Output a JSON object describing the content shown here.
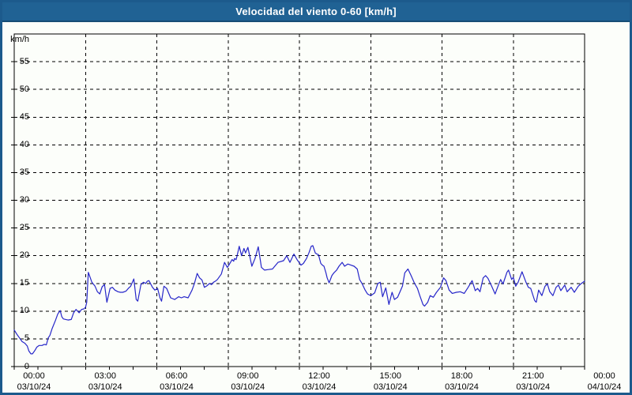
{
  "window": {
    "title": "Velocidad del viento 0-60 [km/h]"
  },
  "colors": {
    "titlebar_bg": "#206294",
    "titlebar_edge": "#174d75",
    "frame_border": "#1c5a8c",
    "plot_bg": "#fcfefa",
    "grid": "#000000",
    "line": "#2626c9",
    "title_text": "#ffffff"
  },
  "chart_data": {
    "type": "line",
    "title": "Velocidad del viento 0-60 [km/h]",
    "xlabel": "",
    "ylabel": "km/h",
    "ylim": [
      0,
      60
    ],
    "xlim": [
      0,
      1440
    ],
    "grid": "dashed",
    "legend": "none",
    "yticks": [
      0,
      5,
      10,
      15,
      20,
      25,
      30,
      35,
      40,
      45,
      50,
      55
    ],
    "x_minor_tick_minutes": 60,
    "x_major_tick_minutes": 180,
    "xticks": [
      {
        "m": 0,
        "time": "00:00",
        "date": "03/10/24"
      },
      {
        "m": 180,
        "time": "03:00",
        "date": "03/10/24"
      },
      {
        "m": 360,
        "time": "06:00",
        "date": "03/10/24"
      },
      {
        "m": 540,
        "time": "09:00",
        "date": "03/10/24"
      },
      {
        "m": 720,
        "time": "12:00",
        "date": "03/10/24"
      },
      {
        "m": 900,
        "time": "15:00",
        "date": "03/10/24"
      },
      {
        "m": 1080,
        "time": "18:00",
        "date": "03/10/24"
      },
      {
        "m": 1260,
        "time": "21:00",
        "date": "03/10/24"
      },
      {
        "m": 1440,
        "time": "00:00",
        "date": "04/10/24"
      }
    ],
    "series": [
      {
        "name": "Velocidad del viento [km/h]",
        "points": [
          [
            0,
            6.6
          ],
          [
            6,
            5.9
          ],
          [
            14,
            5.1
          ],
          [
            20,
            4.5
          ],
          [
            27,
            4.2
          ],
          [
            33,
            3.7
          ],
          [
            37,
            2.8
          ],
          [
            42,
            2.3
          ],
          [
            46,
            2.3
          ],
          [
            52,
            2.9
          ],
          [
            57,
            3.5
          ],
          [
            63,
            3.8
          ],
          [
            70,
            3.8
          ],
          [
            76,
            4.0
          ],
          [
            81,
            3.9
          ],
          [
            86,
            5.2
          ],
          [
            90,
            5.6
          ],
          [
            96,
            6.9
          ],
          [
            104,
            8.3
          ],
          [
            110,
            9.5
          ],
          [
            116,
            10.1
          ],
          [
            120,
            9.0
          ],
          [
            124,
            8.6
          ],
          [
            130,
            8.5
          ],
          [
            136,
            8.4
          ],
          [
            144,
            8.5
          ],
          [
            150,
            9.7
          ],
          [
            156,
            10.3
          ],
          [
            160,
            10.0
          ],
          [
            164,
            9.7
          ],
          [
            170,
            10.3
          ],
          [
            176,
            10.4
          ],
          [
            180,
            10.7
          ],
          [
            183,
            11.6
          ],
          [
            187,
            17.0
          ],
          [
            192,
            16.0
          ],
          [
            196,
            15.2
          ],
          [
            204,
            14.5
          ],
          [
            210,
            13.5
          ],
          [
            216,
            13.1
          ],
          [
            222,
            14.4
          ],
          [
            228,
            14.8
          ],
          [
            234,
            11.6
          ],
          [
            242,
            14.1
          ],
          [
            248,
            14.3
          ],
          [
            254,
            13.8
          ],
          [
            262,
            13.5
          ],
          [
            268,
            13.4
          ],
          [
            274,
            13.4
          ],
          [
            282,
            13.6
          ],
          [
            288,
            14.1
          ],
          [
            294,
            14.5
          ],
          [
            302,
            15.8
          ],
          [
            308,
            12.1
          ],
          [
            312,
            11.8
          ],
          [
            320,
            14.8
          ],
          [
            326,
            15.2
          ],
          [
            332,
            15.0
          ],
          [
            336,
            15.4
          ],
          [
            340,
            15.5
          ],
          [
            349,
            14.3
          ],
          [
            355,
            13.8
          ],
          [
            362,
            14.1
          ],
          [
            368,
            12.4
          ],
          [
            372,
            11.8
          ],
          [
            378,
            14.5
          ],
          [
            385,
            14.1
          ],
          [
            395,
            12.4
          ],
          [
            405,
            12.1
          ],
          [
            415,
            12.6
          ],
          [
            422,
            12.4
          ],
          [
            429,
            12.6
          ],
          [
            439,
            12.4
          ],
          [
            449,
            13.8
          ],
          [
            455,
            15.0
          ],
          [
            462,
            16.8
          ],
          [
            468,
            16.0
          ],
          [
            474,
            15.6
          ],
          [
            480,
            14.3
          ],
          [
            487,
            14.6
          ],
          [
            493,
            15.0
          ],
          [
            498,
            14.8
          ],
          [
            503,
            15.2
          ],
          [
            508,
            15.4
          ],
          [
            513,
            15.7
          ],
          [
            523,
            16.7
          ],
          [
            531,
            18.8
          ],
          [
            538,
            17.9
          ],
          [
            540,
            18.1
          ],
          [
            546,
            18.8
          ],
          [
            550,
            19.3
          ],
          [
            554,
            19.0
          ],
          [
            556,
            19.5
          ],
          [
            560,
            19.3
          ],
          [
            562,
            19.8
          ],
          [
            568,
            21.7
          ],
          [
            574,
            20.0
          ],
          [
            580,
            21.3
          ],
          [
            584,
            20.5
          ],
          [
            590,
            21.5
          ],
          [
            600,
            18.1
          ],
          [
            608,
            19.5
          ],
          [
            616,
            21.6
          ],
          [
            624,
            17.9
          ],
          [
            632,
            17.4
          ],
          [
            642,
            17.5
          ],
          [
            652,
            17.6
          ],
          [
            666,
            18.8
          ],
          [
            680,
            19.1
          ],
          [
            688,
            20.0
          ],
          [
            696,
            18.8
          ],
          [
            706,
            20.3
          ],
          [
            714,
            19.3
          ],
          [
            720,
            18.7
          ],
          [
            724,
            18.3
          ],
          [
            730,
            18.6
          ],
          [
            738,
            19.5
          ],
          [
            744,
            20.5
          ],
          [
            750,
            21.7
          ],
          [
            754,
            21.8
          ],
          [
            760,
            20.5
          ],
          [
            764,
            20.3
          ],
          [
            768,
            20.2
          ],
          [
            774,
            18.6
          ],
          [
            778,
            18.3
          ],
          [
            782,
            18.1
          ],
          [
            787,
            16.9
          ],
          [
            790,
            16.0
          ],
          [
            795,
            15.1
          ],
          [
            802,
            16.4
          ],
          [
            807,
            16.9
          ],
          [
            814,
            17.4
          ],
          [
            820,
            18.1
          ],
          [
            828,
            18.8
          ],
          [
            834,
            18.1
          ],
          [
            842,
            18.5
          ],
          [
            850,
            18.3
          ],
          [
            858,
            18.1
          ],
          [
            866,
            17.6
          ],
          [
            872,
            15.7
          ],
          [
            878,
            15.0
          ],
          [
            886,
            13.8
          ],
          [
            892,
            13.1
          ],
          [
            900,
            12.8
          ],
          [
            910,
            13.3
          ],
          [
            918,
            15.0
          ],
          [
            924,
            15.2
          ],
          [
            930,
            12.6
          ],
          [
            938,
            14.2
          ],
          [
            946,
            11.2
          ],
          [
            954,
            13.4
          ],
          [
            960,
            12.1
          ],
          [
            968,
            12.5
          ],
          [
            980,
            14.5
          ],
          [
            986,
            16.9
          ],
          [
            994,
            17.6
          ],
          [
            1002,
            16.4
          ],
          [
            1010,
            15.1
          ],
          [
            1018,
            14.1
          ],
          [
            1024,
            12.8
          ],
          [
            1032,
            11.2
          ],
          [
            1036,
            10.9
          ],
          [
            1044,
            11.6
          ],
          [
            1050,
            12.8
          ],
          [
            1058,
            12.5
          ],
          [
            1066,
            13.4
          ],
          [
            1076,
            14.3
          ],
          [
            1084,
            16.0
          ],
          [
            1090,
            15.5
          ],
          [
            1098,
            13.8
          ],
          [
            1106,
            13.2
          ],
          [
            1116,
            13.4
          ],
          [
            1126,
            13.5
          ],
          [
            1136,
            13.2
          ],
          [
            1146,
            14.3
          ],
          [
            1156,
            15.5
          ],
          [
            1164,
            13.7
          ],
          [
            1170,
            14.1
          ],
          [
            1176,
            13.5
          ],
          [
            1184,
            16.0
          ],
          [
            1190,
            16.4
          ],
          [
            1196,
            15.9
          ],
          [
            1206,
            14.4
          ],
          [
            1214,
            13.1
          ],
          [
            1224,
            15.0
          ],
          [
            1228,
            15.7
          ],
          [
            1234,
            14.9
          ],
          [
            1244,
            17.0
          ],
          [
            1248,
            17.4
          ],
          [
            1256,
            15.7
          ],
          [
            1260,
            16.1
          ],
          [
            1266,
            14.5
          ],
          [
            1272,
            15.2
          ],
          [
            1282,
            17.1
          ],
          [
            1292,
            15.2
          ],
          [
            1298,
            14.3
          ],
          [
            1304,
            14.1
          ],
          [
            1314,
            11.9
          ],
          [
            1318,
            11.6
          ],
          [
            1324,
            13.8
          ],
          [
            1332,
            12.8
          ],
          [
            1340,
            14.5
          ],
          [
            1346,
            14.9
          ],
          [
            1352,
            13.5
          ],
          [
            1360,
            12.8
          ],
          [
            1368,
            14.3
          ],
          [
            1374,
            14.7
          ],
          [
            1380,
            13.7
          ],
          [
            1390,
            14.7
          ],
          [
            1396,
            13.5
          ],
          [
            1406,
            14.3
          ],
          [
            1414,
            13.4
          ],
          [
            1424,
            14.5
          ],
          [
            1430,
            14.9
          ],
          [
            1440,
            15.4
          ]
        ]
      }
    ]
  }
}
